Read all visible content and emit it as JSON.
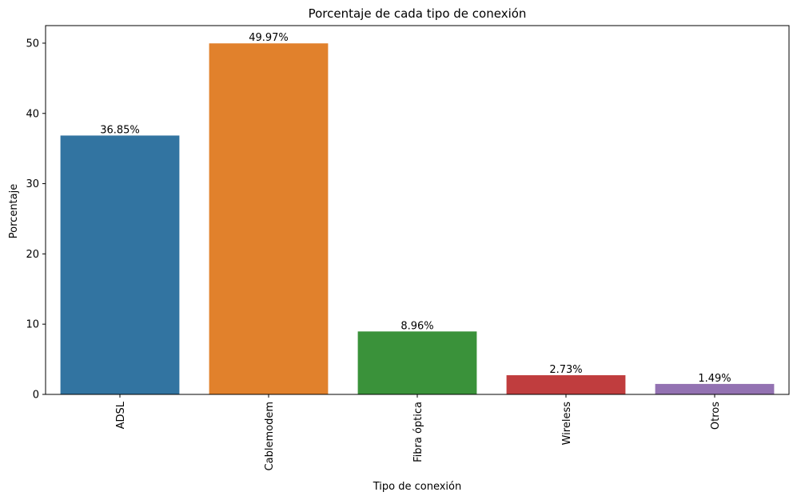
{
  "chart_data": {
    "type": "bar",
    "title": "Porcentaje de cada tipo de conexión",
    "xlabel": "Tipo de conexión",
    "ylabel": "Porcentaje",
    "categories": [
      "ADSL",
      "Cablemodem",
      "Fibra óptica",
      "Wireless",
      "Otros"
    ],
    "values": [
      36.85,
      49.97,
      8.96,
      2.73,
      1.49
    ],
    "data_labels": [
      "36.85%",
      "49.97%",
      "8.96%",
      "2.73%",
      "1.49%"
    ],
    "colors": [
      "#3274a1",
      "#e1812c",
      "#3a923a",
      "#c03d3e",
      "#9372b2"
    ],
    "ylim": [
      0,
      52.5
    ],
    "yticks": [
      0,
      10,
      20,
      30,
      40,
      50
    ],
    "grid": false,
    "legend": "none"
  }
}
